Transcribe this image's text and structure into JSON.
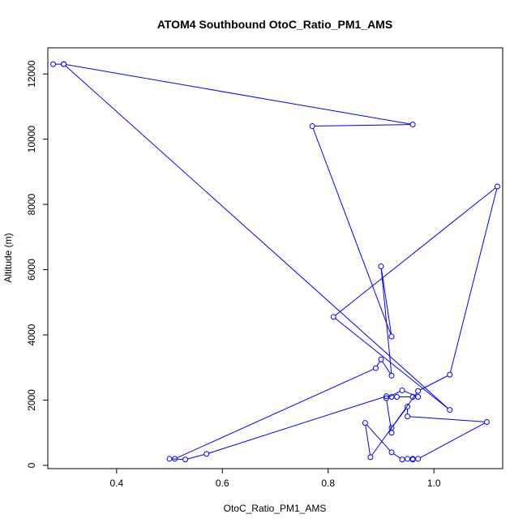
{
  "chart_data": {
    "type": "line",
    "title": "ATOM4 Southbound OtoC_Ratio_PM1_AMS",
    "xlabel": "OtoC_Ratio_PM1_AMS",
    "ylabel": "Altitude (m)",
    "xlim": [
      0.27,
      1.13
    ],
    "ylim": [
      -100,
      12800
    ],
    "xticks": [
      "0.4",
      "0.6",
      "0.8",
      "1.0"
    ],
    "yticks": [
      "0",
      "2000",
      "4000",
      "6000",
      "8000",
      "10000",
      "12000"
    ],
    "grid": false,
    "markers": "open-circle",
    "colors": {
      "series": "#0000ff",
      "axis": "#000000",
      "background": "#ffffff"
    },
    "series": [
      {
        "points": [
          {
            "x": 0.28,
            "y": 12300
          },
          {
            "x": 0.3,
            "y": 12300
          },
          {
            "x": 0.96,
            "y": 10450
          },
          {
            "x": 0.77,
            "y": 10400
          },
          {
            "x": 0.92,
            "y": 3950
          },
          {
            "x": 0.9,
            "y": 6100
          },
          {
            "x": 0.92,
            "y": 2750
          },
          {
            "x": 0.9,
            "y": 3250
          },
          {
            "x": 0.89,
            "y": 2980
          },
          {
            "x": 0.51,
            "y": 200
          },
          {
            "x": 0.5,
            "y": 200
          },
          {
            "x": 0.53,
            "y": 180
          },
          {
            "x": 0.57,
            "y": 350
          },
          {
            "x": 0.91,
            "y": 2120
          },
          {
            "x": 0.92,
            "y": 2100
          },
          {
            "x": 0.93,
            "y": 2100
          },
          {
            "x": 0.96,
            "y": 2100
          },
          {
            "x": 0.97,
            "y": 2100
          },
          {
            "x": 0.94,
            "y": 2300
          },
          {
            "x": 0.91,
            "y": 2060
          },
          {
            "x": 0.92,
            "y": 1000
          },
          {
            "x": 0.92,
            "y": 1150
          },
          {
            "x": 0.95,
            "y": 1800
          },
          {
            "x": 0.95,
            "y": 1500
          },
          {
            "x": 1.1,
            "y": 1330
          },
          {
            "x": 0.97,
            "y": 200
          },
          {
            "x": 0.96,
            "y": 200
          },
          {
            "x": 0.96,
            "y": 180
          },
          {
            "x": 0.95,
            "y": 200
          },
          {
            "x": 0.94,
            "y": 180
          },
          {
            "x": 0.92,
            "y": 400
          },
          {
            "x": 0.87,
            "y": 1300
          },
          {
            "x": 0.88,
            "y": 250
          },
          {
            "x": 0.97,
            "y": 2280
          },
          {
            "x": 1.03,
            "y": 2780
          },
          {
            "x": 1.12,
            "y": 8550
          },
          {
            "x": 0.81,
            "y": 4550
          },
          {
            "x": 1.03,
            "y": 1700
          },
          {
            "x": 0.3,
            "y": 12300
          }
        ]
      }
    ]
  }
}
